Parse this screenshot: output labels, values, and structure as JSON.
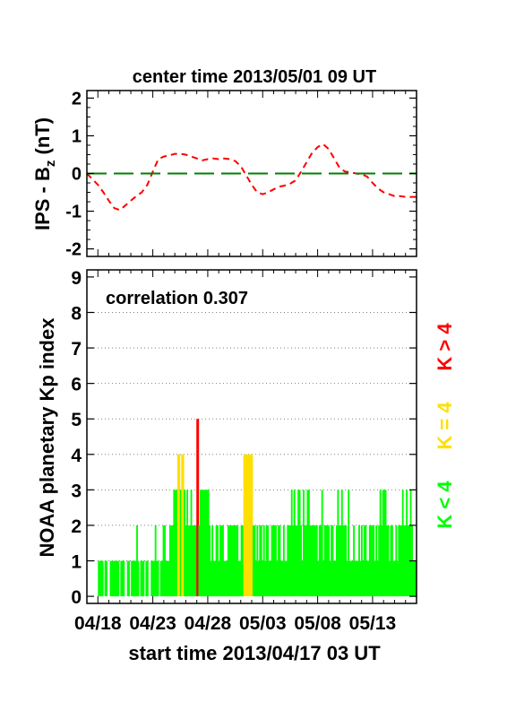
{
  "chart_data": [
    {
      "type": "line",
      "title": "center time 2013/05/01 09 UT",
      "ylabel_main": "IPS - B",
      "ylabel_sub": "z",
      "ylabel_unit": " (nT)",
      "xlim": [
        0,
        30
      ],
      "ylim": [
        -2.2,
        2.2
      ],
      "yticks": [
        2,
        1,
        0,
        -1,
        -2
      ],
      "series": [
        {
          "color": "#ff0000",
          "style": "dashed",
          "x": [
            0,
            0.5,
            1,
            1.5,
            2,
            2.5,
            3,
            3.5,
            4,
            4.5,
            5,
            5.5,
            6,
            6.5,
            7,
            7.5,
            8,
            8.5,
            9,
            9.5,
            10,
            10.5,
            11,
            11.5,
            12,
            12.5,
            13,
            13.5,
            14,
            14.5,
            15,
            15.5,
            16,
            16.5,
            17,
            17.5,
            18,
            18.5,
            19,
            19.5,
            20,
            20.5,
            21,
            21.5,
            22,
            22.5,
            23,
            23.5,
            24,
            24.5,
            25,
            25.5,
            26,
            26.5,
            27,
            27.5,
            28,
            28.5,
            29,
            29.5,
            30
          ],
          "y": [
            0,
            -0.15,
            -0.3,
            -0.5,
            -0.72,
            -0.92,
            -0.97,
            -0.85,
            -0.72,
            -0.6,
            -0.5,
            -0.3,
            0.05,
            0.38,
            0.45,
            0.48,
            0.52,
            0.52,
            0.5,
            0.45,
            0.4,
            0.35,
            0.38,
            0.4,
            0.38,
            0.4,
            0.38,
            0.33,
            0.2,
            -0.05,
            -0.3,
            -0.5,
            -0.55,
            -0.5,
            -0.42,
            -0.35,
            -0.32,
            -0.27,
            -0.18,
            0.05,
            0.3,
            0.55,
            0.7,
            0.78,
            0.65,
            0.4,
            0.15,
            0.05,
            0.03,
            0.0,
            -0.02,
            -0.08,
            -0.25,
            -0.4,
            -0.5,
            -0.55,
            -0.6,
            -0.6,
            -0.62,
            -0.62,
            -0.62
          ]
        },
        {
          "color": "#008000",
          "style": "long-dash",
          "x": [
            0,
            30
          ],
          "y": [
            0,
            0
          ]
        }
      ]
    },
    {
      "type": "bar",
      "annotation": "correlation 0.307",
      "ylabel": "NOAA planetary Kp index",
      "xlabel": "start time 2013/04/17 03 UT",
      "xticks": [
        "04/18",
        "04/23",
        "04/28",
        "05/03",
        "05/08",
        "05/13"
      ],
      "yticks": [
        9,
        8,
        7,
        6,
        5,
        4,
        3,
        2,
        1,
        0
      ],
      "ylim": [
        -0.2,
        9.2
      ],
      "xlim": [
        0,
        30
      ],
      "grid": true,
      "legend": [
        {
          "label": "K < 4",
          "color": "#00ff00"
        },
        {
          "label": "K = 4",
          "color": "#ffdf00"
        },
        {
          "label": "K > 4",
          "color": "#ff0000"
        }
      ],
      "kp": [
        1,
        1,
        1,
        1,
        0,
        1,
        1,
        0,
        0,
        1,
        1,
        1,
        1,
        1,
        1,
        1,
        0,
        1,
        1,
        1,
        0,
        0,
        1,
        1,
        0,
        1,
        1,
        1,
        1,
        2,
        1,
        0,
        1,
        1,
        1,
        0,
        1,
        1,
        0,
        0,
        1,
        1,
        1,
        2,
        1,
        1,
        0,
        1,
        1,
        2,
        2,
        1,
        1,
        1,
        2,
        2,
        2,
        3,
        3,
        3,
        4,
        4,
        3,
        4,
        4,
        3,
        2,
        3,
        2,
        2,
        3,
        2,
        2,
        2,
        2,
        5,
        2,
        3,
        3,
        3,
        3,
        3,
        3,
        3,
        2,
        1,
        2,
        1,
        1,
        2,
        2,
        1,
        2,
        2,
        2,
        1,
        1,
        1,
        2,
        2,
        2,
        2,
        2,
        2,
        2,
        2,
        1,
        1,
        2,
        2,
        4,
        4,
        4,
        4,
        4,
        4,
        4,
        2,
        2,
        1,
        2,
        1,
        2,
        2,
        1,
        2,
        1,
        2,
        2,
        1,
        1,
        2,
        2,
        2,
        2,
        1,
        2,
        2,
        1,
        1,
        2,
        1,
        1,
        2,
        2,
        2,
        3,
        2,
        3,
        2,
        2,
        3,
        3,
        2,
        1,
        3,
        2,
        2,
        3,
        3,
        2,
        2,
        2,
        2,
        2,
        2,
        1,
        2,
        2,
        3,
        1,
        2,
        2,
        2,
        2,
        1,
        2,
        2,
        1,
        1,
        2,
        3,
        2,
        2,
        3,
        2,
        2,
        2,
        1,
        3,
        1,
        1,
        1,
        2,
        1,
        1,
        1,
        2,
        1,
        2,
        1,
        2,
        2,
        1,
        1,
        2,
        2,
        2,
        2,
        1,
        2,
        1,
        2,
        3,
        2,
        3,
        3,
        3,
        2,
        2,
        1,
        2,
        2,
        1,
        1,
        2,
        1,
        2,
        2,
        2,
        3,
        2,
        2,
        3,
        2,
        2,
        3,
        2,
        1,
        1,
        1
      ]
    }
  ],
  "colors": {
    "k_low": "#00ff00",
    "k_mid": "#ffdf00",
    "k_high": "#ff0000",
    "axis": "#000000",
    "grid": "#808080"
  }
}
